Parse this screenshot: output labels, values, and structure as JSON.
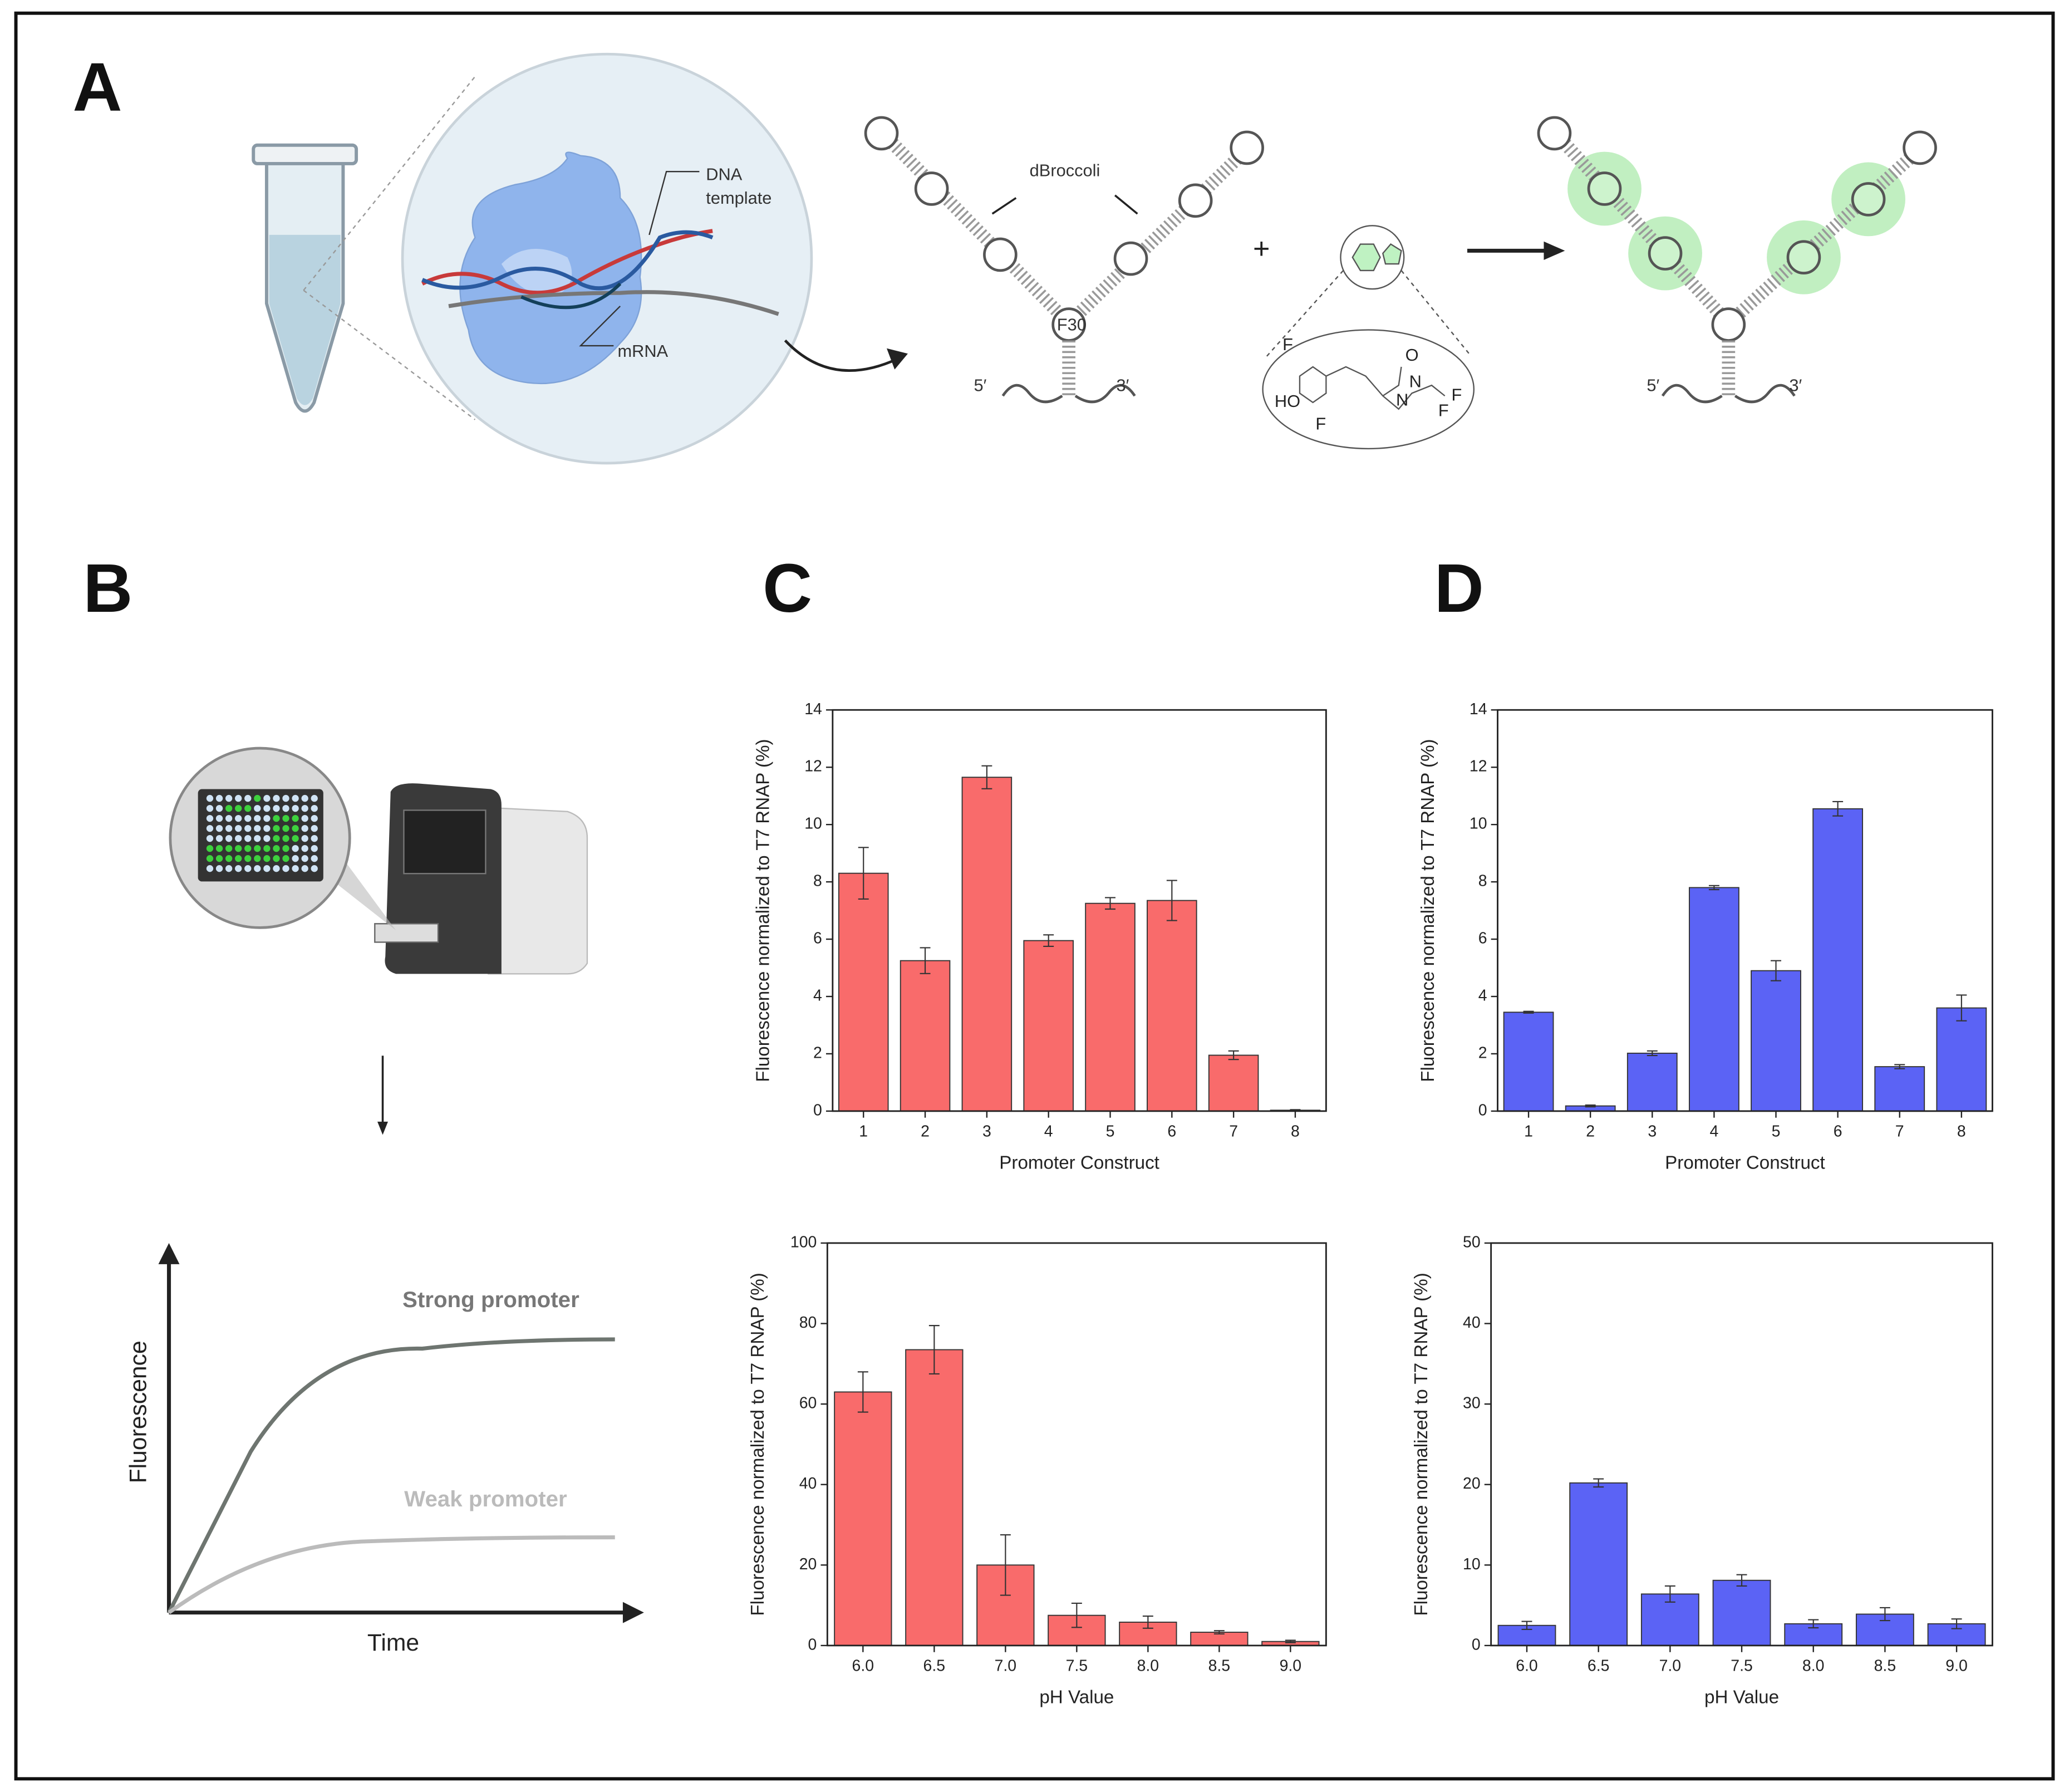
{
  "panels": {
    "a": "A",
    "b": "B",
    "c": "C",
    "d": "D"
  },
  "panel_a": {
    "dna_template": [
      "DNA",
      "template"
    ],
    "mrna": "mRNA",
    "dbroccoli": "dBroccoli",
    "f30": "F30",
    "five_prime": "5′",
    "three_prime": "3′",
    "plus": "+",
    "atoms": {
      "f1": "F",
      "ho": "HO",
      "f2": "F",
      "o": "O",
      "n1": "N",
      "n2": "N",
      "f3": "F",
      "f4": "F"
    }
  },
  "panel_b": {
    "strong": "Strong promoter",
    "weak": "Weak promoter",
    "ylabel": "Fluorescence",
    "xlabel": "Time"
  },
  "chart_data": [
    {
      "type": "bar",
      "color": "#f96b6b",
      "categories": [
        "1",
        "2",
        "3",
        "4",
        "5",
        "6",
        "7",
        "8"
      ],
      "values": [
        8.3,
        5.25,
        11.65,
        5.95,
        7.25,
        7.35,
        1.95,
        0.03
      ],
      "errors": [
        0.9,
        0.45,
        0.4,
        0.2,
        0.2,
        0.7,
        0.15,
        0.02
      ],
      "xlabel": "Promoter Construct",
      "ylabel": "Fluorescence normalized to T7 RNAP (%)",
      "ylim": [
        0,
        14
      ],
      "yticks": [
        0,
        2,
        4,
        6,
        8,
        10,
        12,
        14
      ]
    },
    {
      "type": "bar",
      "color": "#5b63f5",
      "categories": [
        "1",
        "2",
        "3",
        "4",
        "5",
        "6",
        "7",
        "8"
      ],
      "values": [
        3.45,
        0.18,
        2.02,
        7.8,
        4.9,
        10.55,
        1.55,
        3.6
      ],
      "errors": [
        0.03,
        0.03,
        0.08,
        0.07,
        0.35,
        0.25,
        0.07,
        0.45
      ],
      "xlabel": "Promoter Construct",
      "ylabel": "Fluorescence normalized to T7 RNAP (%)",
      "ylim": [
        0,
        14
      ],
      "yticks": [
        0,
        2,
        4,
        6,
        8,
        10,
        12,
        14
      ]
    },
    {
      "type": "bar",
      "color": "#f96b6b",
      "categories": [
        "6.0",
        "6.5",
        "7.0",
        "7.5",
        "8.0",
        "8.5",
        "9.0"
      ],
      "values": [
        63,
        73.5,
        20,
        7.5,
        5.8,
        3.3,
        1.0
      ],
      "errors": [
        5,
        6,
        7.5,
        3,
        1.5,
        0.4,
        0.3
      ],
      "xlabel": "pH Value",
      "ylabel": "Fluorescence normalized to T7 RNAP (%)",
      "ylim": [
        0,
        100
      ],
      "yticks": [
        0,
        20,
        40,
        60,
        80,
        100
      ]
    },
    {
      "type": "bar",
      "color": "#5b63f5",
      "categories": [
        "6.0",
        "6.5",
        "7.0",
        "7.5",
        "8.0",
        "8.5",
        "9.0"
      ],
      "values": [
        2.5,
        20.2,
        6.4,
        8.1,
        2.7,
        3.9,
        2.7
      ],
      "errors": [
        0.5,
        0.5,
        1.0,
        0.7,
        0.5,
        0.8,
        0.6
      ],
      "xlabel": "pH Value",
      "ylabel": "Fluorescence normalized to T7 RNAP (%)",
      "ylim": [
        0,
        50
      ],
      "yticks": [
        0,
        10,
        20,
        30,
        40,
        50
      ]
    }
  ]
}
